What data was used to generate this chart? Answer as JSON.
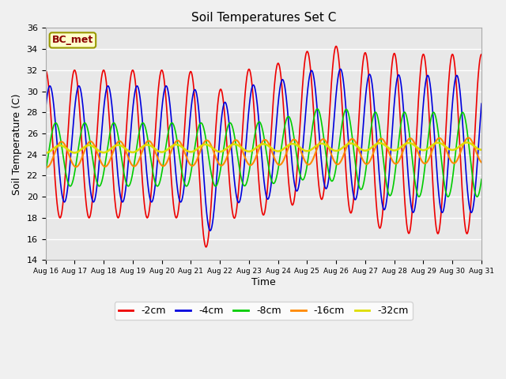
{
  "title": "Soil Temperatures Set C",
  "xlabel": "Time",
  "ylabel": "Soil Temperature (C)",
  "ylim": [
    14,
    36
  ],
  "yticks": [
    14,
    16,
    18,
    20,
    22,
    24,
    26,
    28,
    30,
    32,
    34,
    36
  ],
  "annotation": "BC_met",
  "colors": {
    "-2cm": "#ee0000",
    "-4cm": "#0000dd",
    "-8cm": "#00cc00",
    "-16cm": "#ff8800",
    "-32cm": "#dddd00"
  },
  "fig_bg": "#f0f0f0",
  "plot_bg": "#e8e8e8",
  "grid_color": "#ffffff"
}
